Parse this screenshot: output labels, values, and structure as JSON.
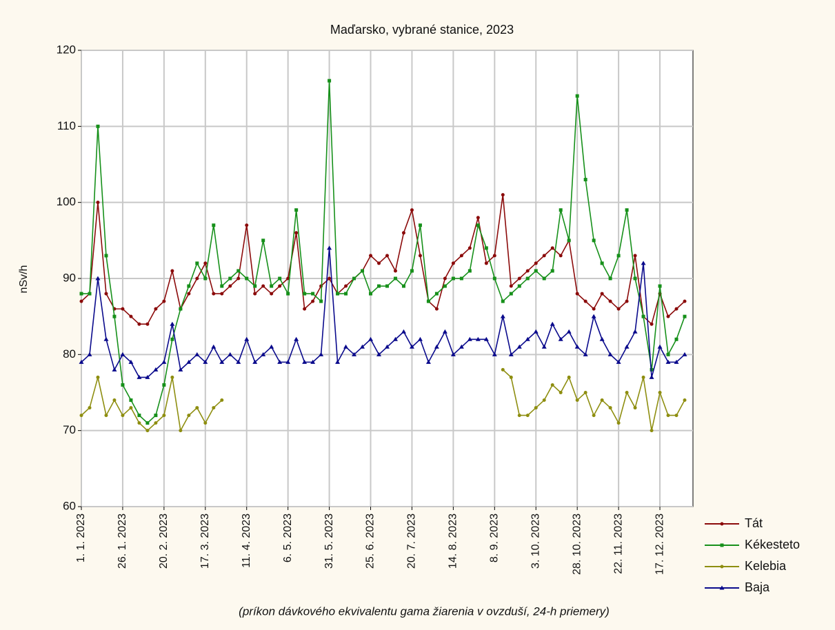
{
  "chart_data": {
    "type": "line",
    "title": "Maďarsko, vybrané stanice, 2023",
    "y_label": "nSv/h",
    "x_label": "(príkon dávkového ekvivalentu gama žiarenia v ovzduší, 24-h priemery)",
    "x": [
      0,
      5,
      10,
      15,
      20,
      25,
      30,
      35,
      40,
      45,
      50,
      55,
      60,
      65,
      70,
      75,
      80,
      85,
      90,
      95,
      100,
      105,
      110,
      115,
      120,
      125,
      130,
      135,
      140,
      145,
      150,
      155,
      160,
      165,
      170,
      175,
      180,
      185,
      190,
      195,
      200,
      205,
      210,
      215,
      220,
      225,
      230,
      235,
      240,
      245,
      250,
      255,
      260,
      265,
      270,
      275,
      280,
      285,
      290,
      295,
      300,
      305,
      310,
      315,
      320,
      325,
      330,
      335,
      340,
      345,
      350,
      355,
      360,
      365
    ],
    "series": [
      {
        "name": "Tát",
        "color": "#8b0a0a",
        "marker": "circle",
        "values": [
          87,
          88,
          100,
          88,
          86,
          86,
          85,
          84,
          84,
          86,
          87,
          91,
          86,
          88,
          90,
          92,
          88,
          88,
          89,
          90,
          97,
          88,
          89,
          88,
          89,
          90,
          96,
          86,
          87,
          89,
          90,
          88,
          89,
          90,
          91,
          93,
          92,
          93,
          91,
          96,
          99,
          93,
          87,
          86,
          90,
          92,
          93,
          94,
          98,
          92,
          93,
          101,
          89,
          90,
          91,
          92,
          93,
          94,
          93,
          95,
          88,
          87,
          86,
          88,
          87,
          86,
          87,
          93,
          85,
          84,
          88,
          85,
          86,
          87
        ]
      },
      {
        "name": "Kékesteto",
        "color": "#16901a",
        "marker": "square",
        "values": [
          88,
          88,
          110,
          93,
          85,
          76,
          74,
          72,
          71,
          72,
          76,
          82,
          86,
          89,
          92,
          90,
          97,
          89,
          90,
          91,
          90,
          89,
          95,
          89,
          90,
          88,
          99,
          88,
          88,
          87,
          116,
          88,
          88,
          90,
          91,
          88,
          89,
          89,
          90,
          89,
          91,
          97,
          87,
          88,
          89,
          90,
          90,
          91,
          97,
          94,
          90,
          87,
          88,
          89,
          90,
          91,
          90,
          91,
          99,
          95,
          114,
          103,
          95,
          92,
          90,
          93,
          99,
          90,
          85,
          78,
          89,
          80,
          82,
          85
        ]
      },
      {
        "name": "Kelebia",
        "color": "#8e8e10",
        "marker": "circle",
        "values": [
          72,
          73,
          77,
          72,
          74,
          72,
          73,
          71,
          70,
          71,
          72,
          77,
          70,
          72,
          73,
          71,
          73,
          74,
          null,
          null,
          null,
          null,
          null,
          null,
          null,
          null,
          null,
          null,
          null,
          null,
          null,
          null,
          null,
          null,
          null,
          null,
          null,
          null,
          null,
          null,
          null,
          null,
          null,
          null,
          null,
          null,
          null,
          null,
          null,
          null,
          null,
          78,
          77,
          72,
          72,
          73,
          74,
          76,
          75,
          77,
          74,
          75,
          72,
          74,
          73,
          71,
          75,
          73,
          77,
          70,
          75,
          72,
          72,
          74
        ]
      },
      {
        "name": "Baja",
        "color": "#0a0a8c",
        "marker": "triangle",
        "values": [
          79,
          80,
          90,
          82,
          78,
          80,
          79,
          77,
          77,
          78,
          79,
          84,
          78,
          79,
          80,
          79,
          81,
          79,
          80,
          79,
          82,
          79,
          80,
          81,
          79,
          79,
          82,
          79,
          79,
          80,
          94,
          79,
          81,
          80,
          81,
          82,
          80,
          81,
          82,
          83,
          81,
          82,
          79,
          81,
          83,
          80,
          81,
          82,
          82,
          82,
          80,
          85,
          80,
          81,
          82,
          83,
          81,
          84,
          82,
          83,
          81,
          80,
          85,
          82,
          80,
          79,
          81,
          83,
          92,
          77,
          81,
          79,
          79,
          80
        ]
      }
    ],
    "xlim": [
      0,
      370
    ],
    "xticks": [
      {
        "value": 0,
        "label": "1. 1. 2023"
      },
      {
        "value": 25,
        "label": "26. 1. 2023"
      },
      {
        "value": 50,
        "label": "20. 2. 2023"
      },
      {
        "value": 75,
        "label": "17. 3. 2023"
      },
      {
        "value": 100,
        "label": "11. 4. 2023"
      },
      {
        "value": 125,
        "label": "6. 5. 2023"
      },
      {
        "value": 150,
        "label": "31. 5. 2023"
      },
      {
        "value": 175,
        "label": "25. 6. 2023"
      },
      {
        "value": 200,
        "label": "20. 7. 2023"
      },
      {
        "value": 225,
        "label": "14. 8. 2023"
      },
      {
        "value": 250,
        "label": "8. 9. 2023"
      },
      {
        "value": 275,
        "label": "3. 10. 2023"
      },
      {
        "value": 300,
        "label": "28. 10. 2023"
      },
      {
        "value": 325,
        "label": "22. 11. 2023"
      },
      {
        "value": 350,
        "label": "17. 12. 2023"
      }
    ],
    "ylim": [
      60,
      120
    ],
    "yticks": [
      60,
      70,
      80,
      90,
      100,
      110,
      120
    ],
    "grid": true,
    "legend": "bottom-right"
  }
}
